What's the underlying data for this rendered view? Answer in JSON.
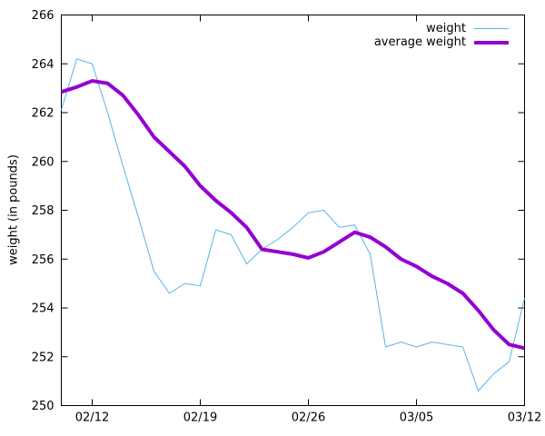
{
  "chart_data": {
    "type": "line",
    "title": "",
    "xlabel": "",
    "ylabel": "weight (in pounds)",
    "grid": "off",
    "legend_position": "top-right-inside",
    "ylim": [
      250,
      266
    ],
    "y_ticks": [
      250,
      252,
      254,
      256,
      258,
      260,
      262,
      264,
      266
    ],
    "xlim_days": [
      0,
      30
    ],
    "x_tick_labels": [
      "02/12",
      "02/19",
      "02/26",
      "03/05",
      "03/12"
    ],
    "x_tick_days": [
      2,
      9,
      16,
      23,
      30
    ],
    "x_dates": [
      "02/10",
      "02/11",
      "02/12",
      "02/13",
      "02/14",
      "02/15",
      "02/16",
      "02/17",
      "02/18",
      "02/19",
      "02/20",
      "02/21",
      "02/22",
      "02/23",
      "02/24",
      "02/25",
      "02/26",
      "02/27",
      "02/28",
      "03/01",
      "03/02",
      "03/03",
      "03/04",
      "03/05",
      "03/06",
      "03/07",
      "03/08",
      "03/09",
      "03/10",
      "03/11",
      "03/12"
    ],
    "series": [
      {
        "name": "weight",
        "color": "#56b4e9",
        "line_width": 1,
        "values": [
          262.1,
          264.2,
          264.0,
          262.0,
          259.8,
          257.7,
          255.5,
          254.6,
          255.0,
          254.9,
          257.2,
          257.0,
          255.8,
          256.4,
          256.8,
          257.3,
          257.9,
          258.0,
          257.3,
          257.4,
          256.2,
          252.4,
          252.6,
          252.4,
          252.6,
          252.5,
          252.4,
          250.6,
          251.3,
          251.8,
          254.4
        ]
      },
      {
        "name": "average weight",
        "color": "#9400d3",
        "line_width": 4,
        "values": [
          262.85,
          263.05,
          263.3,
          263.2,
          262.7,
          261.9,
          261.0,
          260.4,
          259.8,
          259.0,
          258.4,
          257.9,
          257.3,
          256.4,
          256.3,
          256.2,
          256.05,
          256.3,
          256.7,
          257.1,
          256.9,
          256.5,
          256.0,
          255.7,
          255.3,
          255.0,
          254.6,
          253.9,
          253.1,
          252.5,
          252.35
        ]
      }
    ]
  },
  "colors": {
    "background": "#ffffff",
    "axis": "#000000",
    "tick_text": "#000000"
  }
}
